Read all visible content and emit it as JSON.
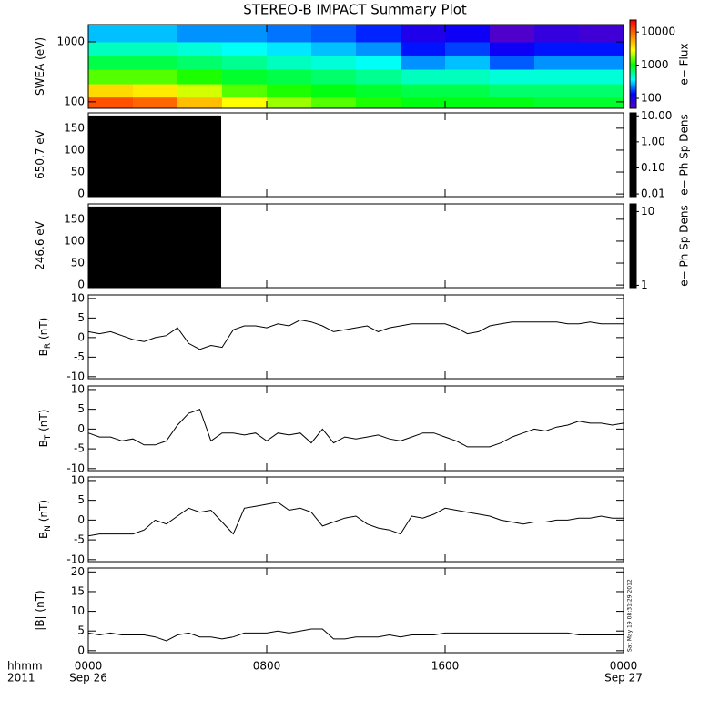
{
  "title": "STEREO-B IMPACT Summary Plot",
  "timestamp": "Sat May 19 08:31:29 2012",
  "x_units": "hhmm",
  "year": "2011",
  "xlim": [
    0,
    24
  ],
  "xticks": [
    {
      "value": 0,
      "label": "0000"
    },
    {
      "value": 8,
      "label": "0800"
    },
    {
      "value": 16,
      "label": "1600"
    },
    {
      "value": 24,
      "label": "0000"
    }
  ],
  "date_ticks": [
    {
      "value": 0,
      "label": "Sep 26"
    },
    {
      "value": 24,
      "label": "Sep 27"
    }
  ],
  "chart_data": [
    {
      "type": "heatmap",
      "ylabel": "SWEA (eV)",
      "ylog": true,
      "ylim": [
        78,
        1940
      ],
      "yticks": [
        100,
        1000
      ],
      "x_edges": [
        0,
        2,
        4,
        6,
        8,
        10,
        12,
        14,
        16,
        18,
        20,
        22,
        24
      ],
      "y_edges": [
        78,
        120,
        200,
        350,
        600,
        1000,
        1940
      ],
      "values": [
        [
          12000,
          10000,
          5000,
          3000,
          2000,
          1500,
          1200,
          1000,
          1000,
          1000,
          900,
          900
        ],
        [
          4000,
          3500,
          2500,
          1500,
          1200,
          1000,
          900,
          800,
          800,
          700,
          700,
          700
        ],
        [
          1500,
          1500,
          1200,
          900,
          800,
          700,
          600,
          500,
          500,
          450,
          450,
          450
        ],
        [
          800,
          800,
          700,
          600,
          500,
          450,
          400,
          250,
          300,
          200,
          250,
          250
        ],
        [
          500,
          500,
          450,
          400,
          350,
          300,
          250,
          150,
          180,
          120,
          150,
          150
        ],
        [
          300,
          300,
          250,
          250,
          220,
          200,
          160,
          100,
          120,
          60,
          80,
          70
        ]
      ],
      "colorbar": {
        "label": "e− Flux",
        "log": true,
        "lim": [
          50,
          23000
        ],
        "ticks": [
          100,
          1000,
          10000
        ],
        "colormap": [
          "#6000c0",
          "#0000ff",
          "#00ffff",
          "#00ff00",
          "#ffff00",
          "#ff8000",
          "#ff0000"
        ]
      }
    },
    {
      "type": "block",
      "ylabel": "650.7 eV",
      "ylim": [
        -6,
        185
      ],
      "yticks": [
        0,
        50,
        100,
        150
      ],
      "x": [
        0,
        5.96
      ],
      "top": 179,
      "color": "#000000",
      "colorbar": {
        "label": "e− Ph Sp Dens",
        "log": true,
        "lim": [
          0.0079,
          13
        ],
        "color": "#000000",
        "ticks": [
          0.01,
          {
            "value": 0.1,
            "label": "0.10"
          },
          {
            "value": 1,
            "label": "1.00"
          },
          {
            "value": 10,
            "label": "10.00"
          }
        ]
      }
    },
    {
      "type": "block",
      "ylabel": "246.6 eV",
      "ylim": [
        -6,
        185
      ],
      "yticks": [
        0,
        50,
        100,
        150
      ],
      "x": [
        0,
        5.96
      ],
      "top": 179,
      "color": "#000000",
      "colorbar": {
        "label": "e− Ph Sp Dens",
        "log": true,
        "lim": [
          0.93,
          12.7
        ],
        "color": "#000000",
        "ticks": [
          1,
          10
        ]
      }
    },
    {
      "type": "line",
      "ylabel": "B",
      "ylabel_sub": "R",
      "ylabel_unit": " (nT)",
      "ylim": [
        -10.5,
        10.9
      ],
      "yticks": [
        -10,
        -5,
        0,
        5,
        10
      ],
      "color": "#000000",
      "x": [
        0,
        0.5,
        1,
        1.5,
        2,
        2.5,
        3,
        3.5,
        4,
        4.5,
        5,
        5.5,
        6,
        6.5,
        7,
        7.5,
        8,
        8.5,
        9,
        9.5,
        10,
        10.5,
        11,
        11.5,
        12,
        12.5,
        13,
        13.5,
        14,
        14.5,
        15,
        15.5,
        16,
        16.5,
        17,
        17.5,
        18,
        18.5,
        19,
        19.5,
        20,
        20.5,
        21,
        21.5,
        22,
        22.5,
        23,
        23.5,
        24
      ],
      "values": [
        1.5,
        1,
        1.5,
        0.5,
        -0.5,
        -1,
        0,
        0.5,
        2.5,
        -1.5,
        -3,
        -2,
        -2.5,
        2,
        3,
        3,
        2.5,
        3.5,
        3,
        4.5,
        4,
        3,
        1.5,
        2,
        2.5,
        3,
        1.5,
        2.5,
        3,
        3.5,
        3.5,
        3.5,
        3.5,
        2.5,
        1,
        1.5,
        3,
        3.5,
        4,
        4,
        4,
        4,
        4,
        3.5,
        3.5,
        4,
        3.5,
        3.5,
        3.5
      ]
    },
    {
      "type": "line",
      "ylabel": "B",
      "ylabel_sub": "T",
      "ylabel_unit": " (nT)",
      "ylim": [
        -10.5,
        10.9
      ],
      "yticks": [
        -10,
        -5,
        0,
        5,
        10
      ],
      "color": "#000000",
      "x": [
        0,
        0.5,
        1,
        1.5,
        2,
        2.5,
        3,
        3.5,
        4,
        4.5,
        5,
        5.5,
        6,
        6.5,
        7,
        7.5,
        8,
        8.5,
        9,
        9.5,
        10,
        10.5,
        11,
        11.5,
        12,
        12.5,
        13,
        13.5,
        14,
        14.5,
        15,
        15.5,
        16,
        16.5,
        17,
        17.5,
        18,
        18.5,
        19,
        19.5,
        20,
        20.5,
        21,
        21.5,
        22,
        22.5,
        23,
        23.5,
        24
      ],
      "values": [
        -1,
        -2,
        -2,
        -3,
        -2.5,
        -4,
        -4,
        -3,
        1,
        4,
        5,
        -3,
        -1,
        -1,
        -1.5,
        -1,
        -3,
        -1,
        -1.5,
        -1,
        -3.5,
        0,
        -3.5,
        -2,
        -2.5,
        -2,
        -1.5,
        -2.5,
        -3,
        -2,
        -1,
        -1,
        -2,
        -3,
        -4.5,
        -4.5,
        -4.5,
        -3.5,
        -2,
        -1,
        0,
        -0.5,
        0.5,
        1,
        2,
        1.5,
        1.5,
        1,
        1.5
      ]
    },
    {
      "type": "line",
      "ylabel": "B",
      "ylabel_sub": "N",
      "ylabel_unit": " (nT)",
      "ylim": [
        -10.5,
        10.9
      ],
      "yticks": [
        -10,
        -5,
        0,
        5,
        10
      ],
      "color": "#000000",
      "x": [
        0,
        0.5,
        1,
        1.5,
        2,
        2.5,
        3,
        3.5,
        4,
        4.5,
        5,
        5.5,
        6,
        6.5,
        7,
        7.5,
        8,
        8.5,
        9,
        9.5,
        10,
        10.5,
        11,
        11.5,
        12,
        12.5,
        13,
        13.5,
        14,
        14.5,
        15,
        15.5,
        16,
        16.5,
        17,
        17.5,
        18,
        18.5,
        19,
        19.5,
        20,
        20.5,
        21,
        21.5,
        22,
        22.5,
        23,
        23.5,
        24
      ],
      "values": [
        -4,
        -3.5,
        -3.5,
        -3.5,
        -3.5,
        -2.5,
        0,
        -1,
        1,
        3,
        2,
        2.5,
        -0.5,
        -3.5,
        3,
        3.5,
        4,
        4.5,
        2.5,
        3,
        2,
        -1.5,
        -0.5,
        0.5,
        1,
        -1,
        -2,
        -2.5,
        -3.5,
        1,
        0.5,
        1.5,
        3,
        2.5,
        2,
        1.5,
        1,
        0,
        -0.5,
        -1,
        -0.5,
        -0.5,
        0,
        0,
        0.5,
        0.5,
        1,
        0.5,
        0.5
      ]
    },
    {
      "type": "line",
      "ylabel": "|B| (nT)",
      "ylim": [
        -0.5,
        21
      ],
      "yticks": [
        0,
        5,
        10,
        15,
        20
      ],
      "color": "#000000",
      "x": [
        0,
        0.5,
        1,
        1.5,
        2,
        2.5,
        3,
        3.5,
        4,
        4.5,
        5,
        5.5,
        6,
        6.5,
        7,
        7.5,
        8,
        8.5,
        9,
        9.5,
        10,
        10.5,
        11,
        11.5,
        12,
        12.5,
        13,
        13.5,
        14,
        14.5,
        15,
        15.5,
        16,
        16.5,
        17,
        17.5,
        18,
        18.5,
        19,
        19.5,
        20,
        20.5,
        21,
        21.5,
        22,
        22.5,
        23,
        23.5,
        24
      ],
      "values": [
        4.5,
        4,
        4.5,
        4,
        4,
        4,
        3.5,
        2.5,
        4,
        4.5,
        3.5,
        3.5,
        3,
        3.5,
        4.5,
        4.5,
        4.5,
        5,
        4.5,
        5,
        5.5,
        5.5,
        3,
        3,
        3.5,
        3.5,
        3.5,
        4,
        3.5,
        4,
        4,
        4,
        4.5,
        4.5,
        4.5,
        4.5,
        4.5,
        4.5,
        4.5,
        4.5,
        4.5,
        4.5,
        4.5,
        4.5,
        4,
        4,
        4,
        4,
        4
      ]
    }
  ]
}
